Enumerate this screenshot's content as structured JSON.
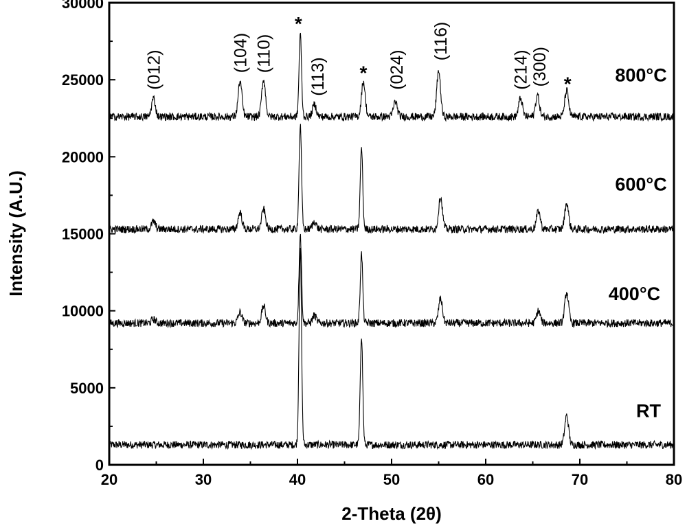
{
  "chart_data": {
    "type": "line",
    "xlabel": "2-Theta (2θ)",
    "ylabel": "Intensity (A.U.)",
    "xlim": [
      20,
      80
    ],
    "ylim": [
      0,
      30000
    ],
    "xticks": [
      20,
      30,
      40,
      50,
      60,
      70,
      80
    ],
    "yticks": [
      0,
      5000,
      10000,
      15000,
      20000,
      25000,
      30000
    ],
    "grid": false,
    "legend": "none",
    "series": [
      {
        "name": "RT",
        "baseline": 1300,
        "peaks": [
          {
            "x": 40.3,
            "y": 14000
          },
          {
            "x": 46.8,
            "y": 8400
          },
          {
            "x": 68.6,
            "y": 3200
          }
        ]
      },
      {
        "name": "400°C",
        "baseline": 9200,
        "peaks": [
          {
            "x": 24.7,
            "y": 9450
          },
          {
            "x": 33.9,
            "y": 9900
          },
          {
            "x": 36.4,
            "y": 10300
          },
          {
            "x": 40.3,
            "y": 15000
          },
          {
            "x": 41.8,
            "y": 9700
          },
          {
            "x": 46.8,
            "y": 13700
          },
          {
            "x": 55.2,
            "y": 10800
          },
          {
            "x": 65.6,
            "y": 10000
          },
          {
            "x": 68.6,
            "y": 11200
          }
        ]
      },
      {
        "name": "600°C",
        "baseline": 15300,
        "peaks": [
          {
            "x": 24.7,
            "y": 15800
          },
          {
            "x": 33.9,
            "y": 16400
          },
          {
            "x": 36.4,
            "y": 16600
          },
          {
            "x": 40.3,
            "y": 22000
          },
          {
            "x": 41.8,
            "y": 15800
          },
          {
            "x": 46.8,
            "y": 20600
          },
          {
            "x": 55.2,
            "y": 17400
          },
          {
            "x": 65.6,
            "y": 16500
          },
          {
            "x": 68.6,
            "y": 17000
          }
        ]
      },
      {
        "name": "800°C",
        "baseline": 22600,
        "peaks": [
          {
            "x": 24.7,
            "y": 23800
          },
          {
            "x": 33.9,
            "y": 24900
          },
          {
            "x": 36.4,
            "y": 25000
          },
          {
            "x": 40.3,
            "y": 28000
          },
          {
            "x": 41.8,
            "y": 23400
          },
          {
            "x": 47.0,
            "y": 24900
          },
          {
            "x": 50.4,
            "y": 23600
          },
          {
            "x": 55.0,
            "y": 25600
          },
          {
            "x": 63.7,
            "y": 23800
          },
          {
            "x": 65.5,
            "y": 24000
          },
          {
            "x": 68.6,
            "y": 24300
          }
        ]
      }
    ],
    "annotations": [
      {
        "text": "(012)",
        "x": 24.7,
        "y": 23900,
        "rotate": true
      },
      {
        "text": "(104)",
        "x": 33.9,
        "y": 25000,
        "rotate": true
      },
      {
        "text": "(110)",
        "x": 36.4,
        "y": 25000,
        "rotate": true
      },
      {
        "text": "*",
        "x": 40.1,
        "y": 28400,
        "rotate": false
      },
      {
        "text": "(113)",
        "x": 42.1,
        "y": 23500,
        "rotate": true
      },
      {
        "text": "*",
        "x": 47.0,
        "y": 25200,
        "rotate": false
      },
      {
        "text": "(024)",
        "x": 50.5,
        "y": 23900,
        "rotate": true
      },
      {
        "text": "(116)",
        "x": 55.2,
        "y": 25800,
        "rotate": true
      },
      {
        "text": "(214)",
        "x": 63.7,
        "y": 23900,
        "rotate": true
      },
      {
        "text": "(300)",
        "x": 65.7,
        "y": 24100,
        "rotate": true
      },
      {
        "text": "*",
        "x": 68.7,
        "y": 24500,
        "rotate": false
      }
    ],
    "series_labels": [
      {
        "text": "800°C",
        "x": 76.5,
        "y": 24900
      },
      {
        "text": "600°C",
        "x": 76.5,
        "y": 17800
      },
      {
        "text": "400°C",
        "x": 75.8,
        "y": 10700
      },
      {
        "text": "RT",
        "x": 77.3,
        "y": 3100
      }
    ]
  }
}
